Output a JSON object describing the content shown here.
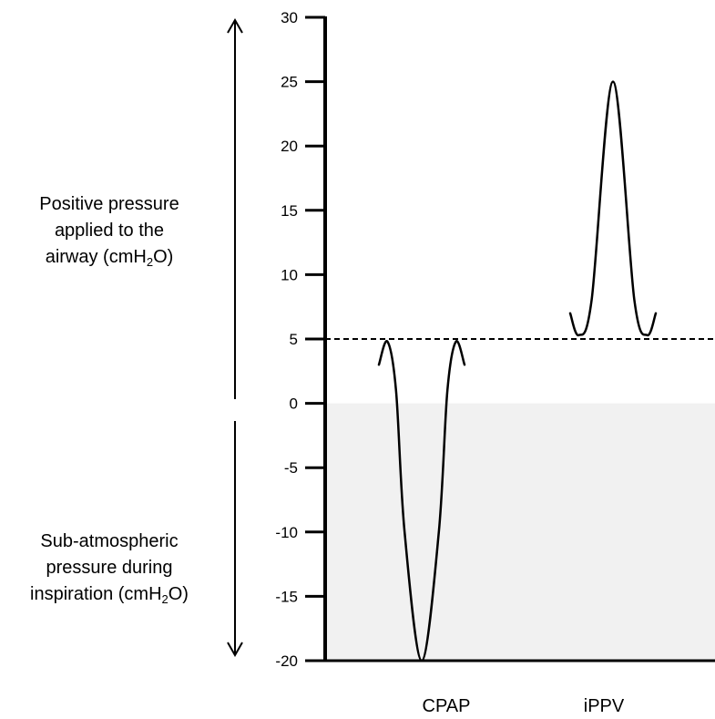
{
  "chart_data": {
    "type": "line",
    "ylim": [
      -20,
      30
    ],
    "yticks": [
      "30",
      "25",
      "20",
      "15",
      "10",
      "5",
      "0",
      "-5",
      "-10",
      "-15",
      "-20"
    ],
    "categories": [
      "CPAP",
      "iPPV"
    ],
    "baseline": 5,
    "series": [
      {
        "category": "CPAP",
        "points": [
          [
            -1.0,
            3.0
          ],
          [
            -0.8,
            4.8
          ],
          [
            -0.6,
            1.0
          ],
          [
            -0.4,
            -10.0
          ],
          [
            0.0,
            -20.0
          ],
          [
            0.4,
            -10.0
          ],
          [
            0.6,
            1.0
          ],
          [
            0.8,
            4.8
          ],
          [
            1.0,
            3.0
          ]
        ]
      },
      {
        "category": "iPPV",
        "points": [
          [
            -1.0,
            7.0
          ],
          [
            -0.8,
            5.3
          ],
          [
            -0.5,
            8.0
          ],
          [
            0.0,
            25.0
          ],
          [
            0.5,
            8.0
          ],
          [
            0.8,
            5.3
          ],
          [
            1.0,
            7.0
          ]
        ]
      }
    ],
    "shaded_region": [
      -20,
      0
    ],
    "colors": {
      "shade": "#f1f1f1",
      "line": "#000000"
    }
  },
  "labels": {
    "upper": [
      "Positive pressure",
      "applied to the",
      "airway (cmH",
      "2",
      "O)"
    ],
    "lower": [
      "Sub-atmospheric",
      "pressure during",
      "inspiration (cmH",
      "2",
      "O)"
    ]
  }
}
